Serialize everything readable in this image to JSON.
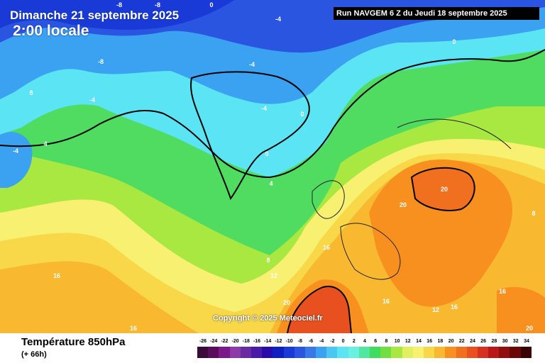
{
  "header": {
    "date": "Dimanche 21 septembre 2025",
    "time": "2:00 locale",
    "run": "Run NAVGEM 6 Z du Jeudi 18 septembre 2025"
  },
  "footer": {
    "parameter": "Température 850hPa",
    "lead": "(+ 66h)",
    "copyright": "Copyright © 2025 Meteociel.fr"
  },
  "legend": {
    "ticks": [
      "-26",
      "-24",
      "-22",
      "-20",
      "-18",
      "-16",
      "-14",
      "-12",
      "-10",
      "-8",
      "-6",
      "-4",
      "-2",
      "0",
      "2",
      "4",
      "6",
      "8",
      "10",
      "12",
      "14",
      "16",
      "18",
      "20",
      "22",
      "24",
      "26",
      "28",
      "30",
      "32",
      "34"
    ],
    "colors": [
      "#3a0a3a",
      "#5a0c5a",
      "#7a1a8a",
      "#8e3aa8",
      "#6a2aa0",
      "#4a1aa8",
      "#2a0aa8",
      "#1020c0",
      "#1a3ad8",
      "#2a55e0",
      "#3a78e8",
      "#3aa2f0",
      "#4ac8f4",
      "#5ae4f4",
      "#6af0e0",
      "#50e8a0",
      "#40dc60",
      "#70e040",
      "#a8e840",
      "#e0f060",
      "#f8f070",
      "#f8d848",
      "#f8b830",
      "#f89020",
      "#f07020",
      "#e85020",
      "#d83020",
      "#b81818",
      "#901010",
      "#6a0808",
      "#3a0404"
    ]
  },
  "map_labels": [
    {
      "text": "-8",
      "color": "#ffffff"
    },
    {
      "text": "-8",
      "color": "#ffffff"
    },
    {
      "text": "-8",
      "color": "#ffffff"
    },
    {
      "text": "-4",
      "color": "#ffffff"
    },
    {
      "text": "-4",
      "color": "#ffffff"
    },
    {
      "text": "-4",
      "color": "#ffffff"
    },
    {
      "text": "-4",
      "color": "#ffffff"
    },
    {
      "text": "-4",
      "color": "#ffffff"
    },
    {
      "text": "0",
      "color": "#ffffff"
    },
    {
      "text": "0",
      "color": "#ffffff"
    },
    {
      "text": "0",
      "color": "#ffffff"
    },
    {
      "text": "0",
      "color": "#ffffff"
    },
    {
      "text": "4",
      "color": "#ffffff"
    },
    {
      "text": "4",
      "color": "#ffffff"
    },
    {
      "text": "8",
      "color": "#ffffff"
    },
    {
      "text": "8",
      "color": "#ffffff"
    },
    {
      "text": "8",
      "color": "#ffffff"
    },
    {
      "text": "12",
      "color": "#ffffff"
    },
    {
      "text": "16",
      "color": "#ffffff"
    },
    {
      "text": "16",
      "color": "#ffffff"
    },
    {
      "text": "16",
      "color": "#ffffff"
    },
    {
      "text": "16",
      "color": "#ffffff"
    },
    {
      "text": "16",
      "color": "#ffffff"
    },
    {
      "text": "16",
      "color": "#ffffff"
    },
    {
      "text": "12",
      "color": "#ffffff"
    },
    {
      "text": "20",
      "color": "#ffffff"
    },
    {
      "text": "20",
      "color": "#ffffff"
    },
    {
      "text": "20",
      "color": "#ffffff"
    },
    {
      "text": "20",
      "color": "#ffffff"
    }
  ]
}
